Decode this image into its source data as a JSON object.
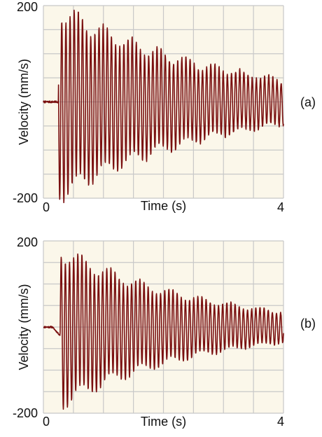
{
  "chart_data": [
    {
      "type": "line",
      "panel_label": "(a)",
      "xlabel": "Time (s)",
      "ylabel": "Velocity (mm/s)",
      "xlim": [
        0,
        4
      ],
      "ylim": [
        -200,
        200
      ],
      "x_tick_labels": [
        "0",
        "4"
      ],
      "y_tick_labels": [
        "200",
        "-200"
      ],
      "x_grid_step": 0.5,
      "y_grid_step": 50,
      "grid": true,
      "background_color": "#fbf7ea",
      "grid_color": "#c8c8c8",
      "line_color": "#7a1010",
      "series": [
        {
          "x_start": 0,
          "x_end": 4,
          "dt": 0.004,
          "onset": 0.25,
          "onset_level": -10,
          "impact_time": 0.22,
          "decay_start": 0.28,
          "envelope_peak": 190,
          "envelope_end": 45,
          "frequency_hz": 14.5,
          "drift_freq": 2.2,
          "noise": 6,
          "seed": 7
        }
      ]
    },
    {
      "type": "line",
      "panel_label": "(b)",
      "xlabel": "Time (s)",
      "ylabel": "Velocity (mm/s)",
      "xlim": [
        0,
        4
      ],
      "ylim": [
        -200,
        200
      ],
      "x_tick_labels": [
        "0",
        "4"
      ],
      "y_tick_labels": [
        "200",
        "-200"
      ],
      "x_grid_step": 0.5,
      "y_grid_step": 50,
      "grid": true,
      "background_color": "#fbf7ea",
      "grid_color": "#c8c8c8",
      "line_color": "#7a1010",
      "series": [
        {
          "x_start": 0,
          "x_end": 4,
          "dt": 0.004,
          "onset": 0.15,
          "onset_level": -20,
          "impact_time": 0.28,
          "decay_start": 0.3,
          "envelope_peak": 175,
          "envelope_end": 35,
          "frequency_hz": 14.5,
          "drift_freq": 2.0,
          "noise": 3,
          "seed": 11
        }
      ]
    }
  ]
}
